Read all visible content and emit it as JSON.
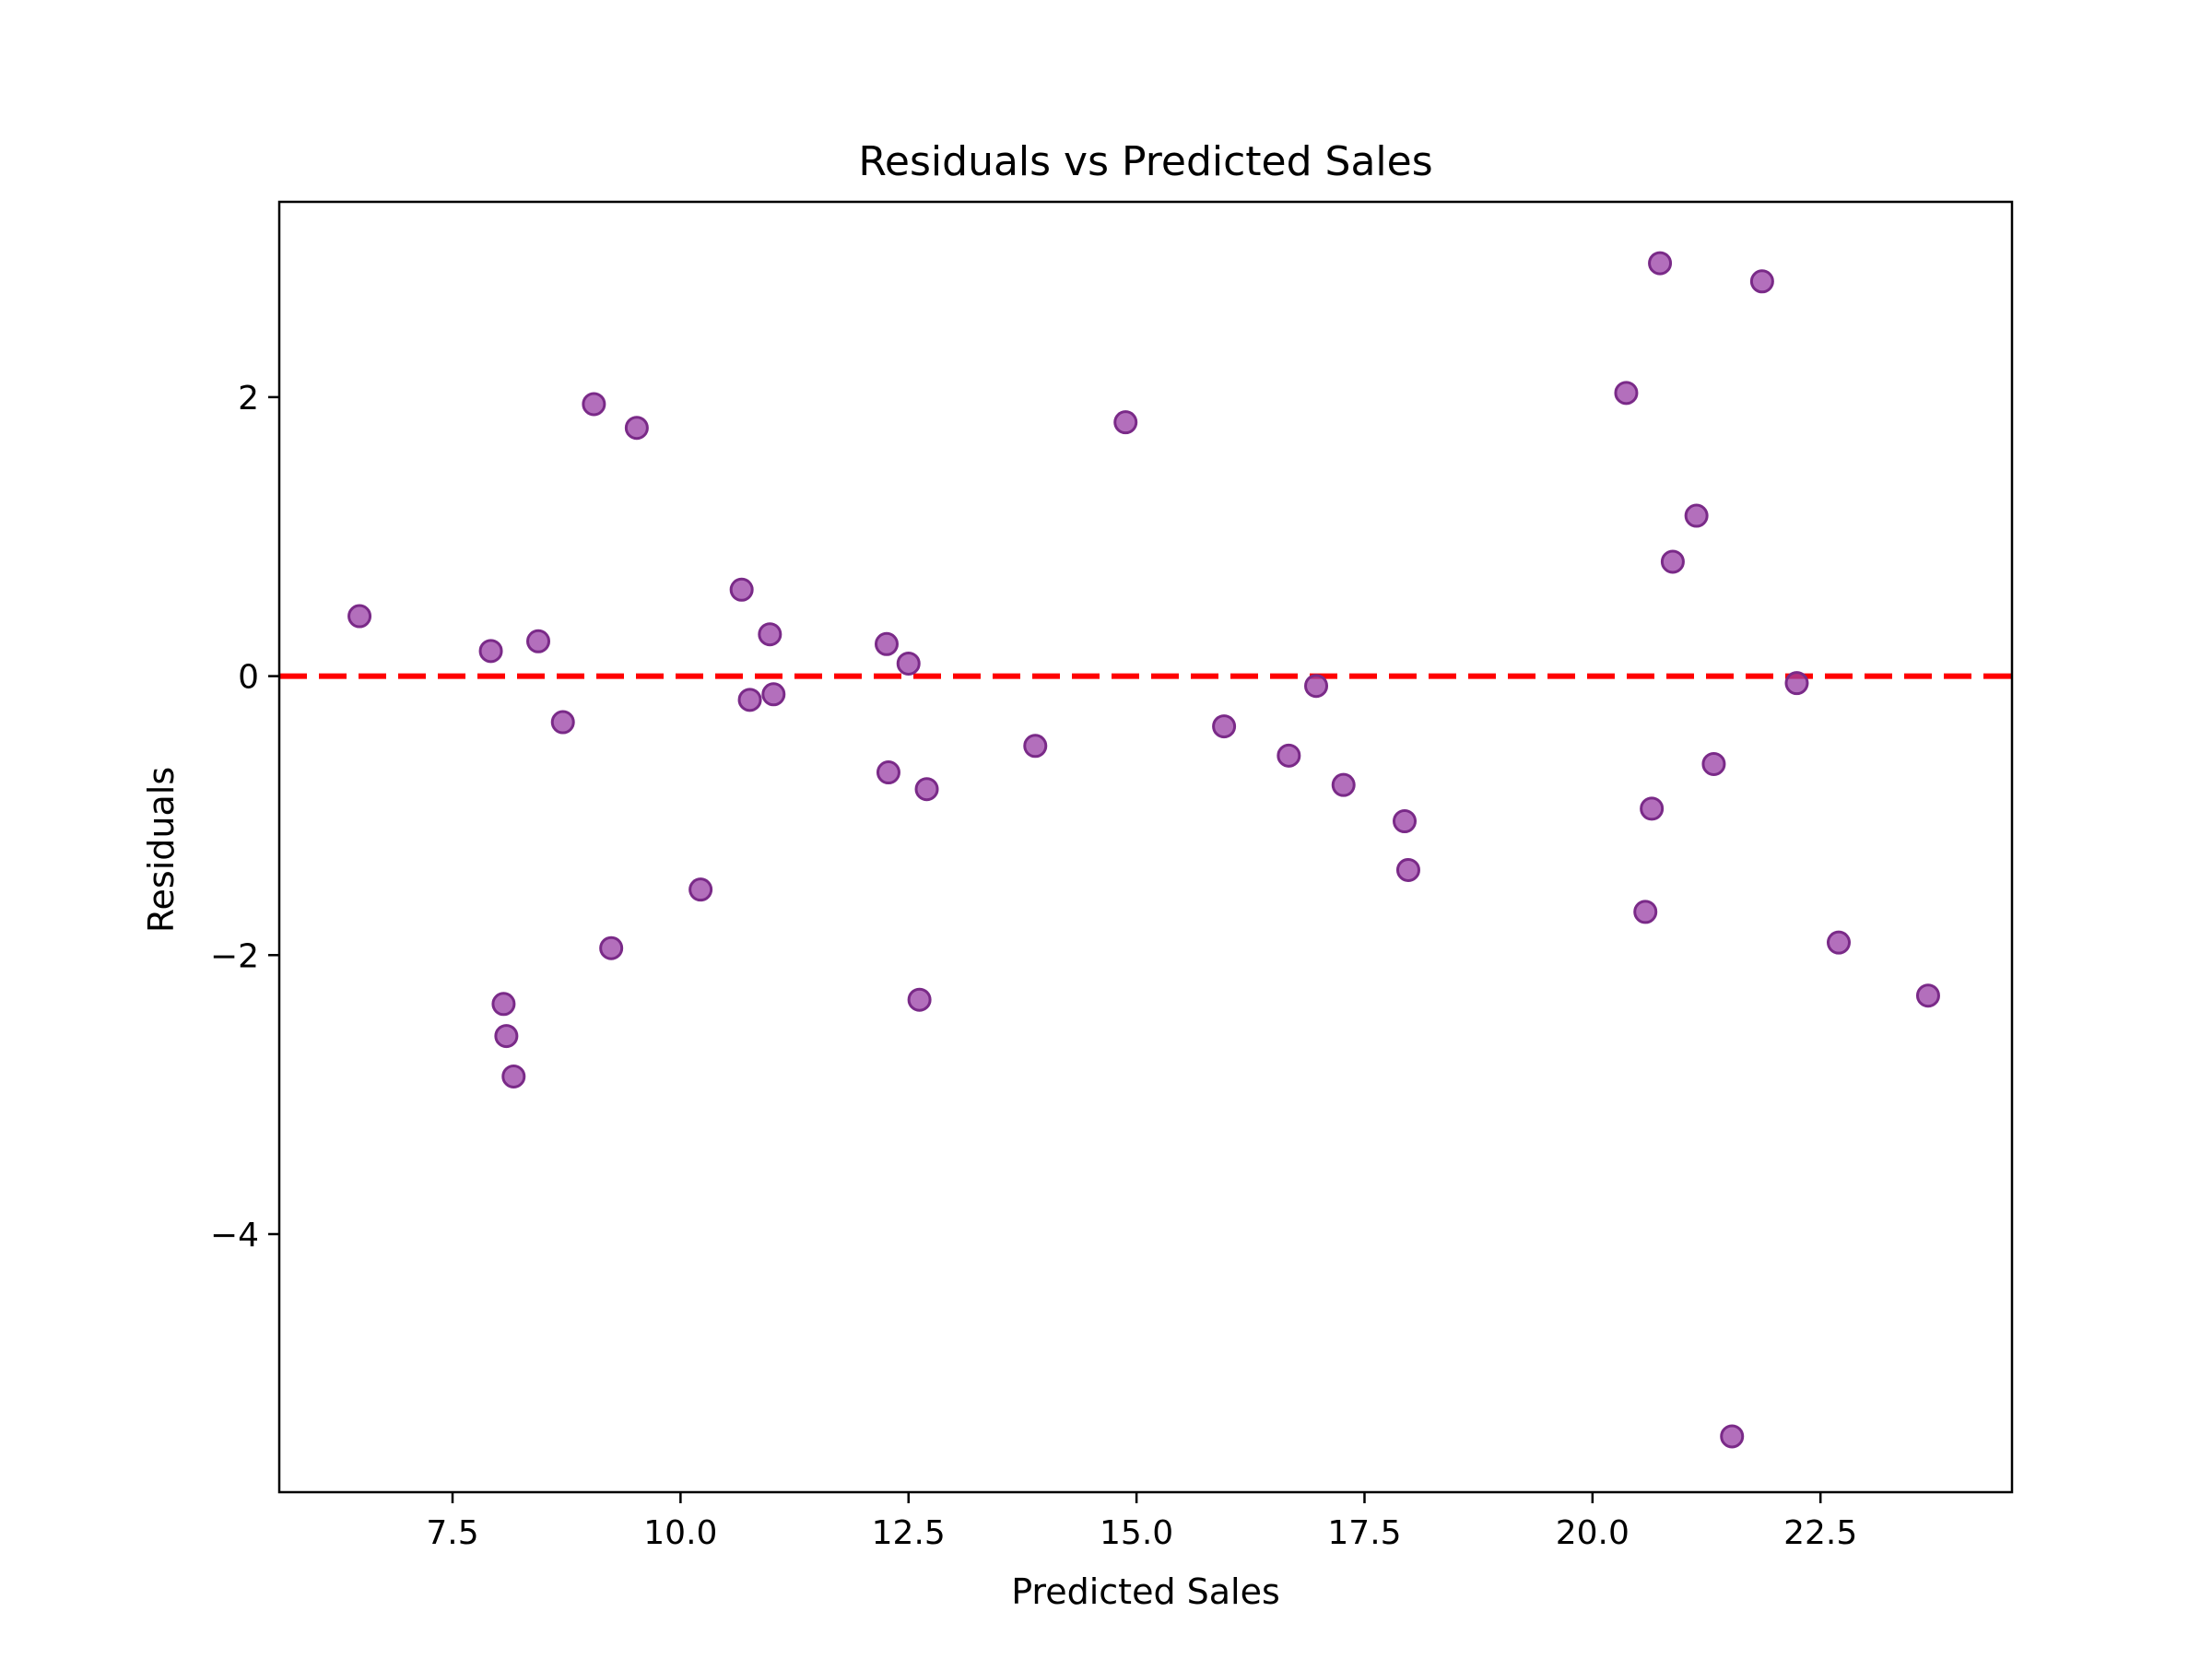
{
  "chart_data": {
    "type": "scatter",
    "title": "Residuals vs Predicted Sales",
    "xlabel": "Predicted Sales",
    "ylabel": "Residuals",
    "xlim": [
      5.6,
      24.6
    ],
    "ylim": [
      -5.85,
      3.4
    ],
    "xticks": [
      7.5,
      10.0,
      12.5,
      15.0,
      17.5,
      20.0,
      22.5
    ],
    "xtick_labels": [
      "7.5",
      "10.0",
      "12.5",
      "15.0",
      "17.5",
      "20.0",
      "22.5"
    ],
    "yticks": [
      -4,
      -2,
      0,
      2
    ],
    "ytick_labels": [
      "−4",
      "−2",
      "0",
      "2"
    ],
    "grid": false,
    "reference_line": {
      "y": 0,
      "style": "dashed",
      "color": "#ff0000"
    },
    "marker_color": "#9a3fa6",
    "marker_edge": "#7a2a88",
    "points": [
      {
        "x": 6.48,
        "y": 0.43
      },
      {
        "x": 7.92,
        "y": 0.18
      },
      {
        "x": 8.44,
        "y": 0.25
      },
      {
        "x": 8.71,
        "y": -0.33
      },
      {
        "x": 8.06,
        "y": -2.35
      },
      {
        "x": 8.09,
        "y": -2.58
      },
      {
        "x": 8.17,
        "y": -2.87
      },
      {
        "x": 9.05,
        "y": 1.95
      },
      {
        "x": 9.52,
        "y": 1.78
      },
      {
        "x": 9.24,
        "y": -1.95
      },
      {
        "x": 10.22,
        "y": -1.53
      },
      {
        "x": 10.67,
        "y": 0.62
      },
      {
        "x": 10.76,
        "y": -0.17
      },
      {
        "x": 10.98,
        "y": 0.3
      },
      {
        "x": 11.02,
        "y": -0.13
      },
      {
        "x": 12.26,
        "y": 0.23
      },
      {
        "x": 12.28,
        "y": -0.69
      },
      {
        "x": 12.5,
        "y": 0.09
      },
      {
        "x": 12.62,
        "y": -2.32
      },
      {
        "x": 12.7,
        "y": -0.81
      },
      {
        "x": 13.89,
        "y": -0.5
      },
      {
        "x": 14.88,
        "y": 1.82
      },
      {
        "x": 15.96,
        "y": -0.36
      },
      {
        "x": 16.67,
        "y": -0.57
      },
      {
        "x": 16.97,
        "y": -0.07
      },
      {
        "x": 17.27,
        "y": -0.78
      },
      {
        "x": 17.94,
        "y": -1.04
      },
      {
        "x": 17.98,
        "y": -1.39
      },
      {
        "x": 20.37,
        "y": 2.03
      },
      {
        "x": 20.58,
        "y": -1.69
      },
      {
        "x": 20.65,
        "y": -0.95
      },
      {
        "x": 20.74,
        "y": 2.96
      },
      {
        "x": 20.88,
        "y": 0.82
      },
      {
        "x": 21.14,
        "y": 1.15
      },
      {
        "x": 21.33,
        "y": -0.63
      },
      {
        "x": 21.53,
        "y": -5.45
      },
      {
        "x": 21.86,
        "y": 2.83
      },
      {
        "x": 22.24,
        "y": -0.05
      },
      {
        "x": 22.7,
        "y": -1.91
      },
      {
        "x": 23.68,
        "y": -2.29
      }
    ]
  }
}
